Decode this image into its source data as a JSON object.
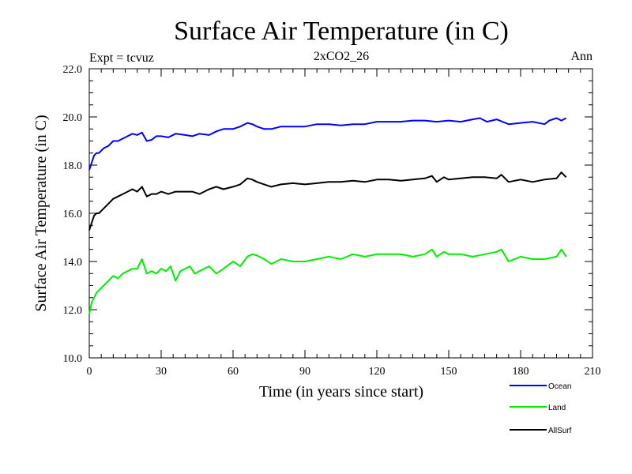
{
  "chart_data": {
    "type": "line",
    "title": "Surface Air Temperature (in C)",
    "subtitle": "2xCO2_26",
    "left_note": "Expt = tcvuz",
    "right_note": "Ann",
    "xlabel": "Time (in years since start)",
    "ylabel": "Surface Air Temperature (in C)",
    "xlim": [
      0,
      210
    ],
    "ylim": [
      10.0,
      22.0
    ],
    "xticks": [
      "0",
      "30",
      "60",
      "90",
      "120",
      "150",
      "180",
      "210"
    ],
    "yticks": [
      "10.0",
      "12.0",
      "14.0",
      "16.0",
      "18.0",
      "20.0",
      "22.0"
    ],
    "legend_position": "bottom-right",
    "series": [
      {
        "name": "Ocean",
        "color": "#0000ff",
        "x": [
          0,
          1,
          2,
          3,
          4,
          5,
          6,
          8,
          10,
          12,
          14,
          16,
          18,
          20,
          22,
          24,
          26,
          28,
          30,
          33,
          36,
          40,
          43,
          46,
          50,
          53,
          56,
          60,
          63,
          66,
          68,
          70,
          73,
          76,
          80,
          85,
          90,
          95,
          100,
          105,
          110,
          115,
          120,
          125,
          130,
          135,
          140,
          145,
          150,
          155,
          160,
          163,
          166,
          170,
          175,
          180,
          185,
          190,
          192,
          195,
          197,
          199
        ],
        "y": [
          17.8,
          18.1,
          18.4,
          18.5,
          18.5,
          18.6,
          18.7,
          18.8,
          19.0,
          19.0,
          19.1,
          19.2,
          19.3,
          19.25,
          19.35,
          19.0,
          19.05,
          19.2,
          19.2,
          19.15,
          19.3,
          19.25,
          19.2,
          19.3,
          19.25,
          19.4,
          19.5,
          19.5,
          19.6,
          19.75,
          19.7,
          19.6,
          19.5,
          19.5,
          19.6,
          19.6,
          19.6,
          19.7,
          19.7,
          19.65,
          19.7,
          19.7,
          19.8,
          19.8,
          19.8,
          19.85,
          19.85,
          19.8,
          19.85,
          19.8,
          19.9,
          19.95,
          19.8,
          19.9,
          19.7,
          19.75,
          19.8,
          19.7,
          19.85,
          19.95,
          19.85,
          19.95
        ]
      },
      {
        "name": "Land",
        "color": "#00ee00",
        "x": [
          0,
          1,
          2,
          3,
          4,
          5,
          6,
          8,
          10,
          12,
          14,
          16,
          18,
          20,
          22,
          24,
          26,
          28,
          30,
          32,
          34,
          36,
          38,
          40,
          42,
          44,
          46,
          48,
          50,
          53,
          56,
          60,
          63,
          66,
          68,
          70,
          73,
          76,
          80,
          85,
          90,
          95,
          100,
          105,
          110,
          115,
          120,
          125,
          130,
          135,
          140,
          143,
          145,
          148,
          150,
          155,
          160,
          165,
          170,
          172,
          175,
          180,
          185,
          190,
          195,
          197,
          199
        ],
        "y": [
          11.8,
          12.3,
          12.5,
          12.7,
          12.8,
          12.9,
          13.0,
          13.2,
          13.4,
          13.3,
          13.5,
          13.6,
          13.7,
          13.7,
          14.1,
          13.5,
          13.6,
          13.5,
          13.7,
          13.6,
          13.8,
          13.2,
          13.6,
          13.7,
          13.8,
          13.5,
          13.6,
          13.7,
          13.8,
          13.5,
          13.7,
          14.0,
          13.8,
          14.2,
          14.3,
          14.25,
          14.1,
          13.9,
          14.1,
          14.0,
          14.0,
          14.1,
          14.2,
          14.1,
          14.3,
          14.2,
          14.3,
          14.3,
          14.3,
          14.2,
          14.3,
          14.5,
          14.2,
          14.4,
          14.3,
          14.3,
          14.2,
          14.3,
          14.4,
          14.5,
          14.0,
          14.2,
          14.1,
          14.1,
          14.2,
          14.5,
          14.2
        ]
      },
      {
        "name": "AllSurf",
        "color": "#000000",
        "x": [
          0,
          1,
          2,
          3,
          4,
          5,
          6,
          8,
          10,
          12,
          14,
          16,
          18,
          20,
          22,
          24,
          26,
          28,
          30,
          33,
          36,
          40,
          43,
          46,
          50,
          53,
          56,
          60,
          63,
          66,
          68,
          70,
          73,
          76,
          80,
          85,
          90,
          95,
          100,
          105,
          110,
          115,
          120,
          125,
          130,
          135,
          140,
          143,
          145,
          148,
          150,
          155,
          160,
          165,
          170,
          172,
          175,
          180,
          185,
          190,
          195,
          197,
          199
        ],
        "y": [
          15.3,
          15.6,
          15.9,
          16.0,
          16.0,
          16.1,
          16.2,
          16.4,
          16.6,
          16.7,
          16.8,
          16.9,
          17.0,
          16.9,
          17.1,
          16.7,
          16.8,
          16.8,
          16.9,
          16.8,
          16.9,
          16.9,
          16.9,
          16.8,
          17.0,
          17.1,
          17.0,
          17.1,
          17.2,
          17.45,
          17.4,
          17.3,
          17.2,
          17.1,
          17.2,
          17.25,
          17.2,
          17.25,
          17.3,
          17.3,
          17.35,
          17.3,
          17.4,
          17.4,
          17.35,
          17.4,
          17.45,
          17.55,
          17.3,
          17.5,
          17.4,
          17.45,
          17.5,
          17.5,
          17.45,
          17.6,
          17.3,
          17.4,
          17.3,
          17.4,
          17.45,
          17.7,
          17.5
        ]
      }
    ]
  }
}
